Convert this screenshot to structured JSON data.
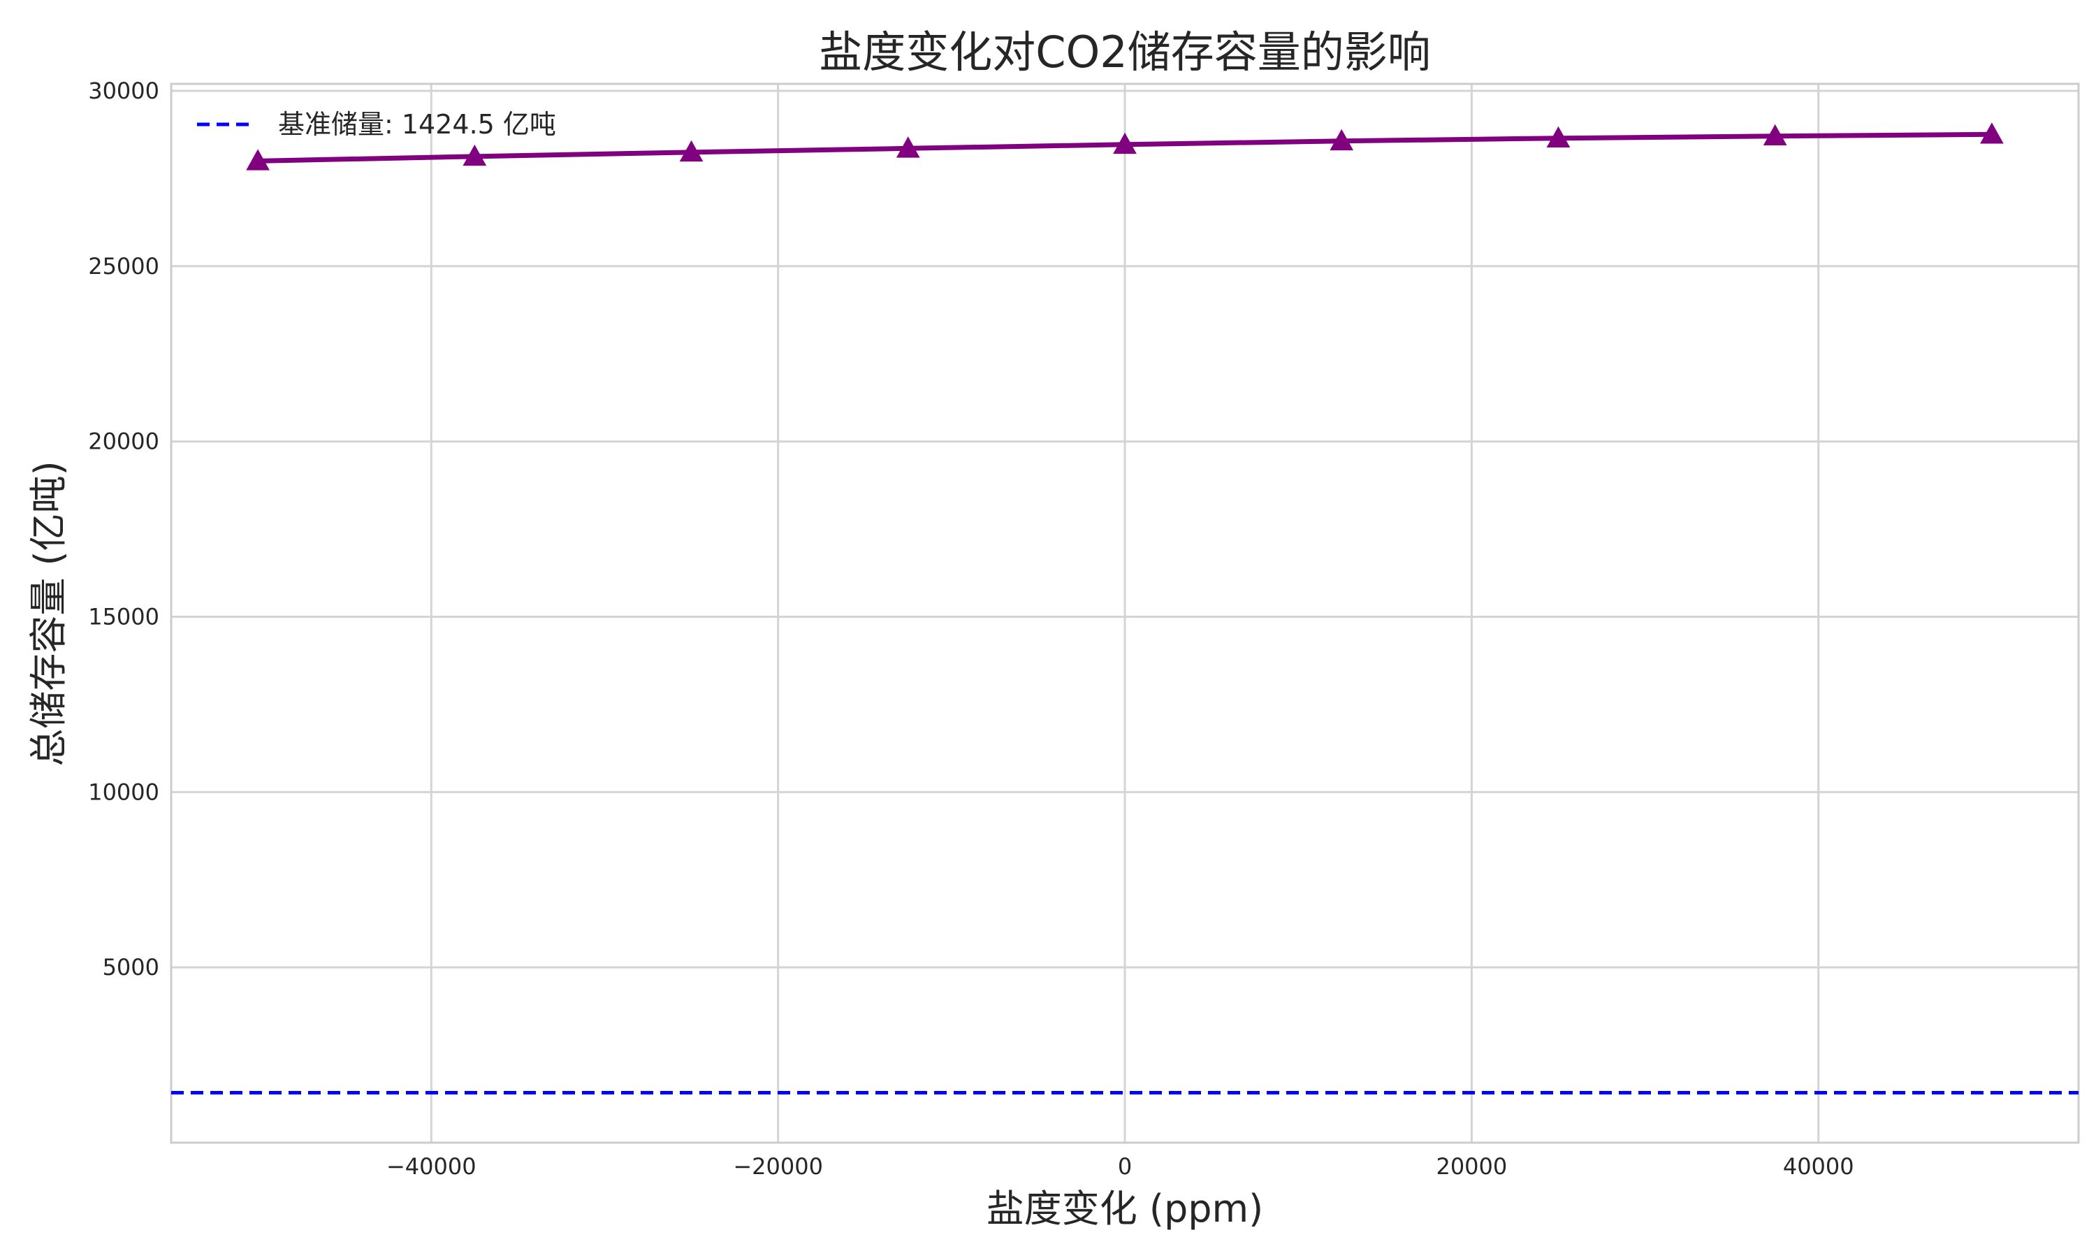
{
  "chart_data": {
    "type": "line",
    "title": "盐度变化对CO2储存容量的影响",
    "xlabel": "盐度变化 (ppm)",
    "ylabel": "总储存容量 (亿吨)",
    "xlim": [
      -55000,
      55000
    ],
    "ylim": [
      0,
      30200
    ],
    "xticks": [
      -40000,
      -20000,
      0,
      20000,
      40000
    ],
    "xtick_labels": [
      "−40000",
      "−20000",
      "0",
      "20000",
      "40000"
    ],
    "yticks": [
      5000,
      10000,
      15000,
      20000,
      25000,
      30000
    ],
    "ytick_labels": [
      "5000",
      "10000",
      "15000",
      "20000",
      "25000",
      "30000"
    ],
    "grid": true,
    "legend_position": "top-left",
    "series": [
      {
        "x": [
          -50000,
          -37500,
          -25000,
          -12500,
          0,
          12500,
          25000,
          37500,
          50000
        ],
        "y": [
          28000,
          28130,
          28250,
          28360,
          28470,
          28570,
          28650,
          28710,
          28760
        ],
        "color": "#800080",
        "marker": "triangle",
        "style": "solid"
      }
    ],
    "reference_lines": [
      {
        "name": "基准储量: 1424.5 亿吨",
        "y": 1424.5,
        "color": "#0000ff",
        "style": "dashed"
      }
    ]
  }
}
